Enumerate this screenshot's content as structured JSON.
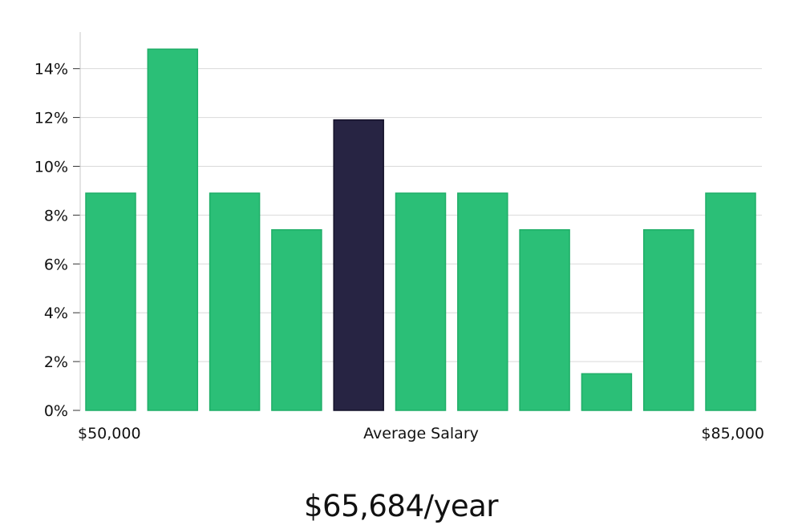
{
  "chart_data": {
    "type": "bar",
    "categories": [
      "",
      "",
      "",
      "",
      "",
      "",
      "",
      "",
      "",
      "",
      ""
    ],
    "values": [
      8.9,
      14.8,
      8.9,
      7.4,
      11.9,
      8.9,
      8.9,
      7.4,
      1.5,
      7.4,
      8.9
    ],
    "highlight_index": 4,
    "ylim": [
      0,
      15.5
    ],
    "yticks": [
      0,
      2,
      4,
      6,
      8,
      10,
      12,
      14
    ],
    "ytick_suffix": "%",
    "grid": true,
    "colors": {
      "bar": "#2bbf77",
      "bar_highlight": "#272443",
      "grid": "#d9d9d9",
      "axis": "#c9c9c9"
    },
    "x_labels": {
      "left": "$50,000",
      "center": "Average Salary",
      "right": "$85,000"
    }
  },
  "summary": {
    "salary": "$65,684/year"
  }
}
